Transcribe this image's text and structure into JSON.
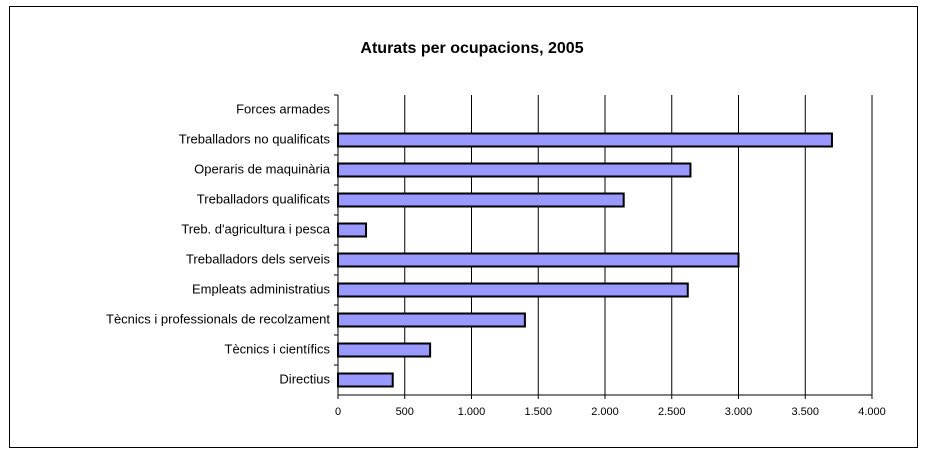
{
  "chart_data": {
    "type": "bar",
    "orientation": "horizontal",
    "title": "Aturats per ocupacions, 2005",
    "categories": [
      "Forces armades",
      "Treballadors no qualificats",
      "Operaris de maquinària",
      "Treballadors qualificats",
      "Treb. d'agricultura i pesca",
      "Treballadors dels serveis",
      "Empleats administratius",
      "Tècnics i professionals de recolzament",
      "Tècnics i científics",
      "Directius"
    ],
    "values": [
      0,
      3700,
      2640,
      2140,
      210,
      3000,
      2620,
      1400,
      690,
      410
    ],
    "color": "#9999ff",
    "xlim": [
      0,
      4000
    ],
    "xticks": [
      0,
      500,
      {
        "value": 1000,
        "label": "1.000"
      },
      {
        "value": 1500,
        "label": "1.500"
      },
      {
        "value": 2000,
        "label": "2.000"
      },
      {
        "value": 2500,
        "label": "2.500"
      },
      {
        "value": 3000,
        "label": "3.000"
      },
      {
        "value": 3500,
        "label": "3.500"
      },
      {
        "value": 4000,
        "label": "4.000"
      }
    ],
    "grid": true
  }
}
